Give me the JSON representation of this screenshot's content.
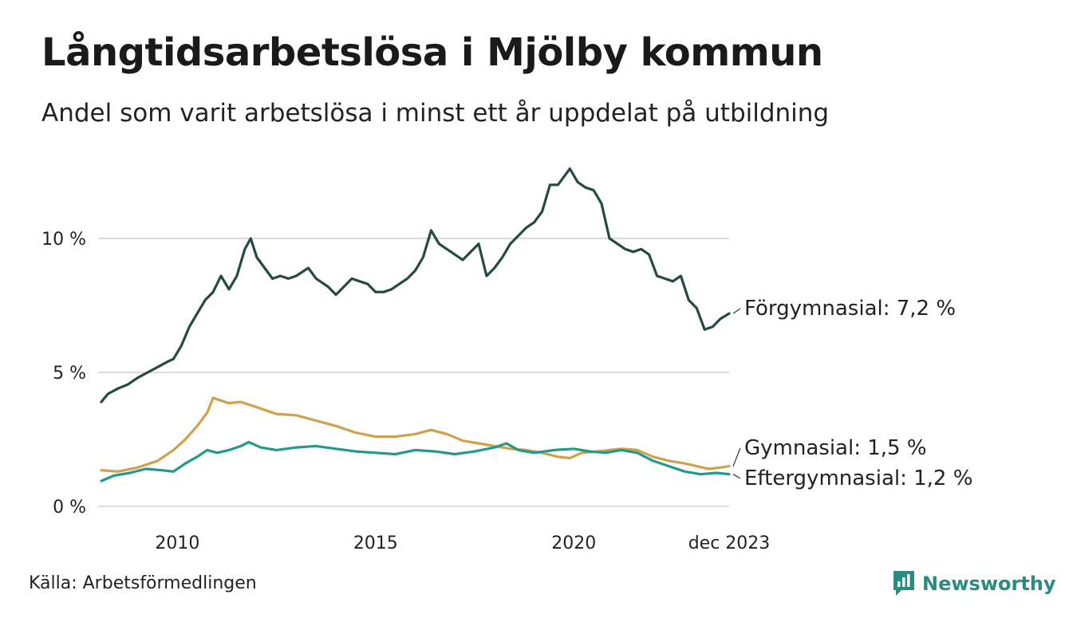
{
  "header": {
    "title": "Långtidsarbetslösa i Mjölby kommun",
    "subtitle": "Andel som varit arbetslösa i minst ett år uppdelat på utbildning"
  },
  "footer": {
    "source": "Källa: Arbetsförmedlingen",
    "brand": "Newsworthy"
  },
  "colors": {
    "forgymnasial": "#244a43",
    "gymnasial": "#cfa14c",
    "eftergymnasial": "#22998a",
    "grid": "#dddddd",
    "brand": "#2a8b7e"
  },
  "chart_data": {
    "type": "line",
    "title": "Långtidsarbetslösa i Mjölby kommun",
    "xlabel": "",
    "ylabel": "",
    "xlim": [
      2008.08,
      2023.92
    ],
    "ylim": [
      0,
      12.5
    ],
    "y_ticks": [
      {
        "value": 0,
        "label": "0 %"
      },
      {
        "value": 5,
        "label": "5 %"
      },
      {
        "value": 10,
        "label": "10 %"
      }
    ],
    "x_ticks": [
      {
        "value": 2010,
        "label": "2010"
      },
      {
        "value": 2015,
        "label": "2015"
      },
      {
        "value": 2020,
        "label": "2020"
      },
      {
        "value": 2023.92,
        "label": "dec 2023"
      }
    ],
    "grid": true,
    "series": [
      {
        "key": "forgymnasial",
        "name": "Förgymnasial",
        "end_label": "Förgymnasial: 7,2 %",
        "points": [
          [
            2008.08,
            3.9
          ],
          [
            2008.25,
            4.2
          ],
          [
            2008.5,
            4.4
          ],
          [
            2008.75,
            4.55
          ],
          [
            2009.0,
            4.8
          ],
          [
            2009.25,
            5.0
          ],
          [
            2009.5,
            5.2
          ],
          [
            2009.75,
            5.4
          ],
          [
            2009.9,
            5.5
          ],
          [
            2010.1,
            6.0
          ],
          [
            2010.3,
            6.7
          ],
          [
            2010.5,
            7.2
          ],
          [
            2010.7,
            7.7
          ],
          [
            2010.9,
            8.0
          ],
          [
            2011.1,
            8.6
          ],
          [
            2011.3,
            8.1
          ],
          [
            2011.5,
            8.6
          ],
          [
            2011.7,
            9.6
          ],
          [
            2011.85,
            10.0
          ],
          [
            2012.0,
            9.3
          ],
          [
            2012.2,
            8.9
          ],
          [
            2012.4,
            8.5
          ],
          [
            2012.6,
            8.6
          ],
          [
            2012.8,
            8.5
          ],
          [
            2013.0,
            8.6
          ],
          [
            2013.3,
            8.9
          ],
          [
            2013.5,
            8.5
          ],
          [
            2013.8,
            8.2
          ],
          [
            2014.0,
            7.9
          ],
          [
            2014.2,
            8.2
          ],
          [
            2014.4,
            8.5
          ],
          [
            2014.6,
            8.4
          ],
          [
            2014.8,
            8.3
          ],
          [
            2015.0,
            8.0
          ],
          [
            2015.2,
            8.0
          ],
          [
            2015.4,
            8.1
          ],
          [
            2015.6,
            8.3
          ],
          [
            2015.8,
            8.5
          ],
          [
            2016.0,
            8.8
          ],
          [
            2016.2,
            9.3
          ],
          [
            2016.4,
            10.3
          ],
          [
            2016.6,
            9.8
          ],
          [
            2016.8,
            9.6
          ],
          [
            2017.0,
            9.4
          ],
          [
            2017.2,
            9.2
          ],
          [
            2017.4,
            9.5
          ],
          [
            2017.6,
            9.8
          ],
          [
            2017.8,
            8.6
          ],
          [
            2018.0,
            8.9
          ],
          [
            2018.2,
            9.3
          ],
          [
            2018.4,
            9.8
          ],
          [
            2018.6,
            10.1
          ],
          [
            2018.8,
            10.4
          ],
          [
            2019.0,
            10.6
          ],
          [
            2019.2,
            11.0
          ],
          [
            2019.4,
            12.0
          ],
          [
            2019.6,
            12.0
          ],
          [
            2019.8,
            12.4
          ],
          [
            2019.9,
            12.6
          ],
          [
            2020.1,
            12.1
          ],
          [
            2020.3,
            11.9
          ],
          [
            2020.5,
            11.8
          ],
          [
            2020.7,
            11.3
          ],
          [
            2020.9,
            10.0
          ],
          [
            2021.1,
            9.8
          ],
          [
            2021.3,
            9.6
          ],
          [
            2021.5,
            9.5
          ],
          [
            2021.7,
            9.6
          ],
          [
            2021.9,
            9.4
          ],
          [
            2022.1,
            8.6
          ],
          [
            2022.3,
            8.5
          ],
          [
            2022.5,
            8.4
          ],
          [
            2022.7,
            8.6
          ],
          [
            2022.9,
            7.7
          ],
          [
            2023.1,
            7.4
          ],
          [
            2023.3,
            6.6
          ],
          [
            2023.5,
            6.7
          ],
          [
            2023.7,
            7.0
          ],
          [
            2023.92,
            7.2
          ]
        ]
      },
      {
        "key": "gymnasial",
        "name": "Gymnasial",
        "end_label": "Gymnasial: 1,5 %",
        "points": [
          [
            2008.08,
            1.35
          ],
          [
            2008.5,
            1.3
          ],
          [
            2009.0,
            1.45
          ],
          [
            2009.5,
            1.7
          ],
          [
            2009.9,
            2.1
          ],
          [
            2010.2,
            2.5
          ],
          [
            2010.5,
            3.0
          ],
          [
            2010.75,
            3.5
          ],
          [
            2010.9,
            4.05
          ],
          [
            2011.1,
            3.95
          ],
          [
            2011.3,
            3.85
          ],
          [
            2011.6,
            3.9
          ],
          [
            2012.0,
            3.7
          ],
          [
            2012.5,
            3.45
          ],
          [
            2013.0,
            3.4
          ],
          [
            2013.5,
            3.2
          ],
          [
            2014.0,
            3.0
          ],
          [
            2014.5,
            2.75
          ],
          [
            2015.0,
            2.6
          ],
          [
            2015.5,
            2.6
          ],
          [
            2016.0,
            2.7
          ],
          [
            2016.4,
            2.85
          ],
          [
            2016.8,
            2.7
          ],
          [
            2017.2,
            2.45
          ],
          [
            2017.6,
            2.35
          ],
          [
            2018.0,
            2.25
          ],
          [
            2018.4,
            2.15
          ],
          [
            2018.8,
            2.1
          ],
          [
            2019.2,
            2.0
          ],
          [
            2019.6,
            1.85
          ],
          [
            2019.9,
            1.8
          ],
          [
            2020.2,
            2.0
          ],
          [
            2020.6,
            2.05
          ],
          [
            2020.9,
            2.1
          ],
          [
            2021.2,
            2.15
          ],
          [
            2021.6,
            2.1
          ],
          [
            2022.0,
            1.85
          ],
          [
            2022.4,
            1.7
          ],
          [
            2022.8,
            1.6
          ],
          [
            2023.1,
            1.5
          ],
          [
            2023.4,
            1.4
          ],
          [
            2023.7,
            1.45
          ],
          [
            2023.92,
            1.5
          ]
        ]
      },
      {
        "key": "eftergymnasial",
        "name": "Eftergymnasial",
        "end_label": "Eftergymnasial: 1,2 %",
        "points": [
          [
            2008.08,
            0.95
          ],
          [
            2008.4,
            1.15
          ],
          [
            2008.8,
            1.25
          ],
          [
            2009.2,
            1.4
          ],
          [
            2009.6,
            1.35
          ],
          [
            2009.9,
            1.3
          ],
          [
            2010.2,
            1.6
          ],
          [
            2010.5,
            1.85
          ],
          [
            2010.75,
            2.1
          ],
          [
            2011.0,
            2.0
          ],
          [
            2011.3,
            2.1
          ],
          [
            2011.6,
            2.25
          ],
          [
            2011.8,
            2.4
          ],
          [
            2012.1,
            2.2
          ],
          [
            2012.5,
            2.1
          ],
          [
            2013.0,
            2.2
          ],
          [
            2013.5,
            2.25
          ],
          [
            2014.0,
            2.15
          ],
          [
            2014.5,
            2.05
          ],
          [
            2015.0,
            2.0
          ],
          [
            2015.5,
            1.95
          ],
          [
            2016.0,
            2.1
          ],
          [
            2016.5,
            2.05
          ],
          [
            2017.0,
            1.95
          ],
          [
            2017.5,
            2.05
          ],
          [
            2018.0,
            2.2
          ],
          [
            2018.3,
            2.35
          ],
          [
            2018.6,
            2.1
          ],
          [
            2019.0,
            2.0
          ],
          [
            2019.5,
            2.1
          ],
          [
            2020.0,
            2.15
          ],
          [
            2020.4,
            2.05
          ],
          [
            2020.8,
            2.0
          ],
          [
            2021.2,
            2.1
          ],
          [
            2021.6,
            2.0
          ],
          [
            2022.0,
            1.7
          ],
          [
            2022.4,
            1.5
          ],
          [
            2022.8,
            1.3
          ],
          [
            2023.2,
            1.2
          ],
          [
            2023.6,
            1.25
          ],
          [
            2023.92,
            1.2
          ]
        ]
      }
    ]
  }
}
